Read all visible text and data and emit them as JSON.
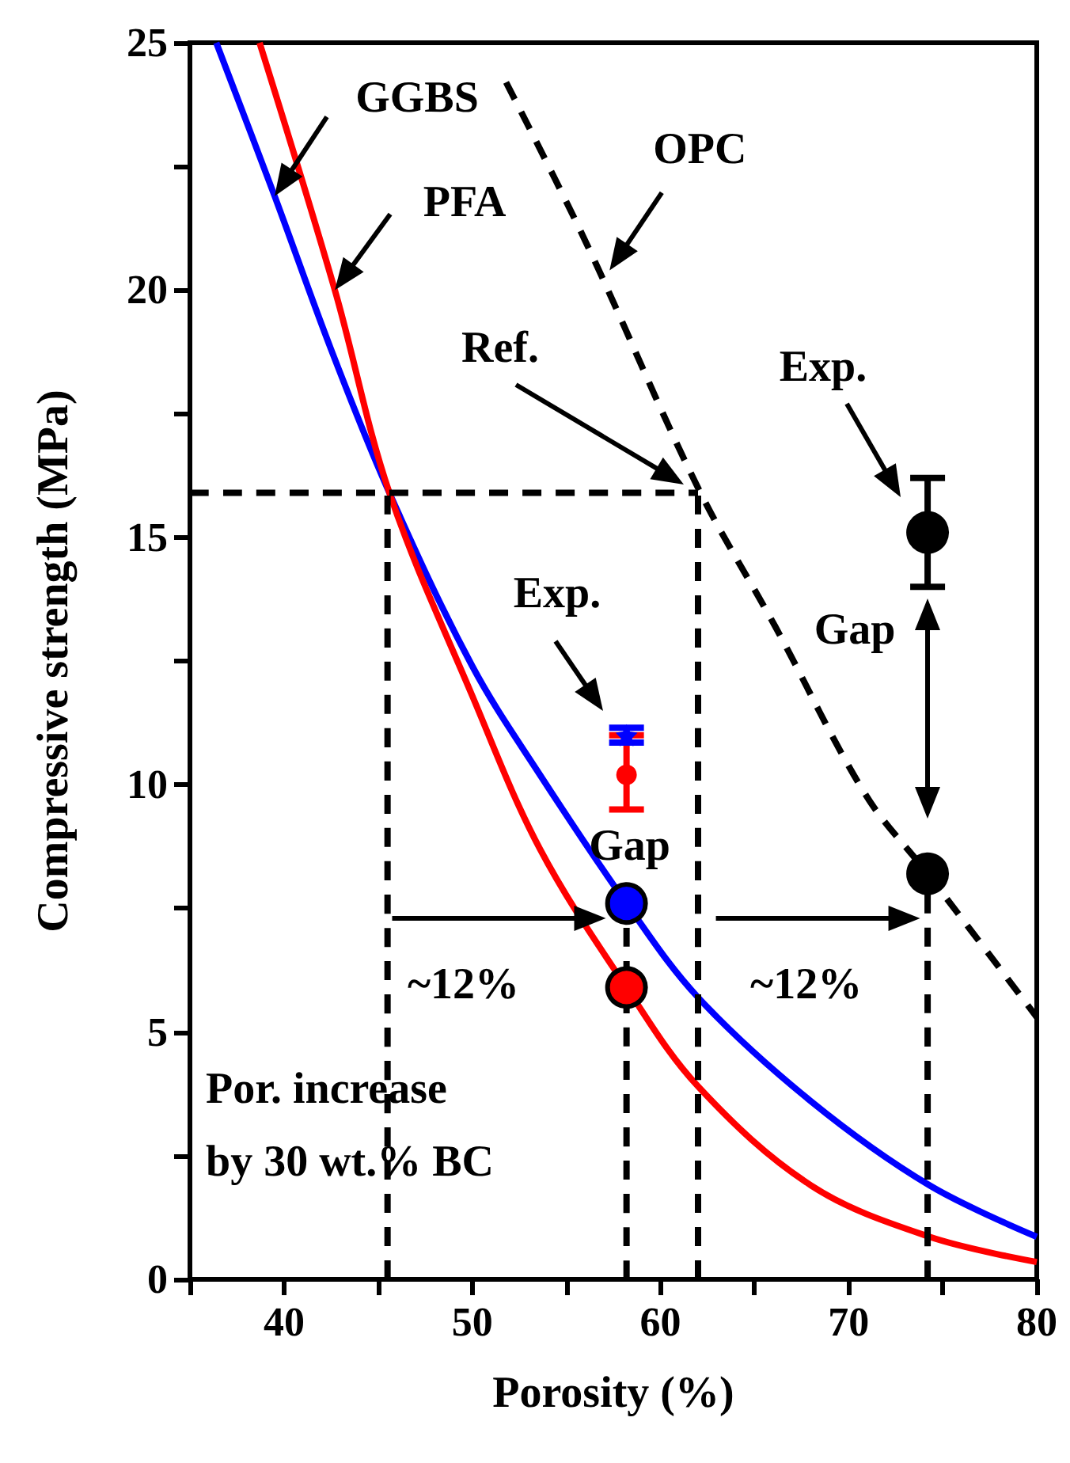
{
  "chart_data": {
    "type": "line",
    "xlabel": "Porosity (%)",
    "ylabel": "Compressive strength (MPa)",
    "xlim": [
      35,
      80
    ],
    "xticks": [
      {
        "value": 35,
        "label": null
      },
      40,
      {
        "value": 45,
        "label": null
      },
      50,
      {
        "value": 55,
        "label": null
      },
      60,
      {
        "value": 65,
        "label": null
      },
      70,
      {
        "value": 75,
        "label": null
      },
      80
    ],
    "ylim": [
      0,
      25
    ],
    "yticks": [
      0,
      {
        "value": 2.5,
        "label": null
      },
      5,
      {
        "value": 7.5,
        "label": null
      },
      10,
      {
        "value": 12.5,
        "label": null
      },
      15,
      {
        "value": 17.5,
        "label": null
      },
      20,
      {
        "value": 22.5,
        "label": null
      },
      25
    ],
    "grid": false,
    "marker": "none",
    "series": [
      {
        "color": "#0000ff",
        "line_style": "solid",
        "x": [
          36.4,
          39.5,
          42.5,
          45.6,
          50,
          53.6,
          58.2,
          62,
          68,
          74.3,
          80
        ],
        "values": [
          25,
          21.9,
          18.8,
          15.9,
          12.4,
          10.2,
          7.6,
          5.7,
          3.6,
          1.9,
          0.86
        ]
      },
      {
        "color": "#ff0000",
        "line_style": "solid",
        "x": [
          38.7,
          42.7,
          45.6,
          50,
          53.6,
          58.2,
          62,
          68,
          74.3,
          80
        ],
        "values": [
          25,
          20,
          15.9,
          11.8,
          8.7,
          5.9,
          3.9,
          1.9,
          0.86,
          0.35
        ]
      },
      {
        "type": "line",
        "color": "#000000",
        "line_style": "dashed",
        "x": [
          51.8,
          56,
          62,
          66.1,
          70.9,
          74.2,
          80
        ],
        "values": [
          24.2,
          21,
          16,
          13.2,
          9.8,
          8.2,
          5.3
        ]
      },
      {
        "type": "line",
        "color": "#000000",
        "line_style": "dashed",
        "x": [
          35,
          62
        ],
        "values": [
          15.9,
          15.9
        ]
      },
      {
        "type": "line",
        "color": "#000000",
        "line_style": "dashed",
        "x": [
          45.5,
          45.5
        ],
        "values": [
          0,
          15.9
        ]
      },
      {
        "type": "line",
        "color": "#000000",
        "line_style": "dashed",
        "x": [
          62,
          62
        ],
        "values": [
          0,
          15.9
        ]
      },
      {
        "type": "line",
        "color": "#000000",
        "line_style": "dashed",
        "x": [
          58.2,
          58.2
        ],
        "values": [
          0,
          7.6
        ]
      },
      {
        "type": "line",
        "color": "#000000",
        "line_style": "dashed",
        "x": [
          74.2,
          74.2
        ],
        "values": [
          0,
          8.2
        ]
      },
      {
        "type": "scatter",
        "color": "#ff0000",
        "marker": "circle",
        "x": [
          58.2
        ],
        "values": [
          10.2
        ],
        "errors": [
          [
            9.5,
            11.0
          ]
        ]
      },
      {
        "type": "scatter",
        "color": "#0000ff",
        "marker": "star",
        "x": [
          58.2
        ],
        "values": [
          11.0
        ],
        "errors": [
          [
            10.85,
            11.15
          ]
        ]
      },
      {
        "type": "scatter",
        "color": "#000000",
        "marker": "circle",
        "x": [
          74.2
        ],
        "values": [
          15.1
        ],
        "errors": [
          [
            14.0,
            16.2
          ]
        ]
      },
      {
        "type": "scatter",
        "color": "#0000ff",
        "marker": "circle",
        "x": [
          58.2
        ],
        "values": [
          7.6
        ]
      },
      {
        "type": "scatter",
        "color": "#ff0000",
        "marker": "circle",
        "x": [
          58.2
        ],
        "values": [
          5.9
        ]
      },
      {
        "type": "scatter",
        "color": "#000000",
        "marker": "circle",
        "x": [
          74.2
        ],
        "values": [
          8.2
        ]
      }
    ],
    "annotations": [
      {
        "text": "GGBS",
        "x": 39.5,
        "y": 21.9
      },
      {
        "text": "PFA",
        "x": 42.7,
        "y": 20
      },
      {
        "text": "OPC",
        "x": 57.3,
        "y": 20.4
      },
      "Ref.",
      "Exp.",
      "Exp.",
      {
        "text": "Gap",
        "x": 58.2,
        "y": 7.6
      },
      "Gap",
      {
        "text": "~12%",
        "x": 57.1,
        "y": 7.3
      },
      {
        "text": "~12%",
        "x": 73.8,
        "y": 7.3
      },
      "Por. increase by 30 wt.% BC"
    ]
  }
}
